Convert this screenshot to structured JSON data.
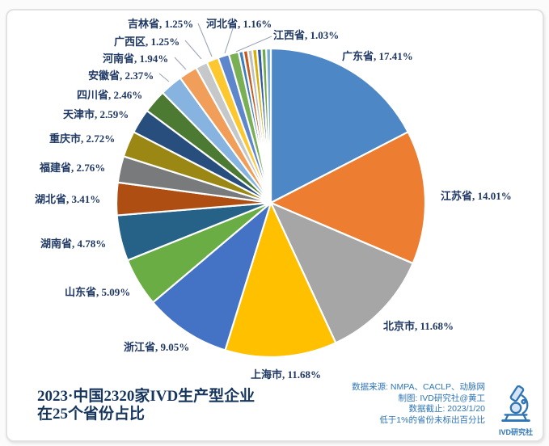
{
  "chart_data": {
    "type": "pie",
    "title": "2023·中国2320家IVD生产型企业在25个省份占比",
    "legend_position": "outside-labels",
    "note": "低于1%的省份未标出百分比",
    "slices": [
      {
        "name": "广东省",
        "pct": "17.41%",
        "value": 17.41,
        "color": "#4E87C5"
      },
      {
        "name": "江苏省",
        "pct": "14.01%",
        "value": 14.01,
        "color": "#ED7D31"
      },
      {
        "name": "北京市",
        "pct": "11.68%",
        "value": 11.68,
        "color": "#A6A6A6"
      },
      {
        "name": "上海市",
        "pct": "11.68%",
        "value": 11.68,
        "color": "#FFC000"
      },
      {
        "name": "浙江省",
        "pct": "9.05%",
        "value": 9.05,
        "color": "#4472C4"
      },
      {
        "name": "山东省",
        "pct": "5.09%",
        "value": 5.09,
        "color": "#6AAD45"
      },
      {
        "name": "湖南省",
        "pct": "4.78%",
        "value": 4.78,
        "color": "#266287"
      },
      {
        "name": "湖北省",
        "pct": "3.41%",
        "value": 3.41,
        "color": "#AE4E13"
      },
      {
        "name": "福建省",
        "pct": "2.76%",
        "value": 2.76,
        "color": "#797A7B"
      },
      {
        "name": "重庆市",
        "pct": "2.72%",
        "value": 2.72,
        "color": "#9B8714"
      },
      {
        "name": "天津市",
        "pct": "2.59%",
        "value": 2.59,
        "color": "#274E7D"
      },
      {
        "name": "四川省",
        "pct": "2.46%",
        "value": 2.46,
        "color": "#4C7A33"
      },
      {
        "name": "安徽省",
        "pct": "2.37%",
        "value": 2.37,
        "color": "#87B3E0"
      },
      {
        "name": "河南省",
        "pct": "1.94%",
        "value": 1.94,
        "color": "#F09E59"
      },
      {
        "name": "广西区",
        "pct": "1.25%",
        "value": 1.25,
        "color": "#C5C7C9"
      },
      {
        "name": "吉林省",
        "pct": "1.25%",
        "value": 1.25,
        "color": "#FDC72F"
      },
      {
        "name": "河北省",
        "pct": "1.16%",
        "value": 1.16,
        "color": "#5E86CC"
      },
      {
        "name": "江西省",
        "pct": "1.03%",
        "value": 1.03,
        "color": "#79AF55"
      },
      {
        "name": "",
        "pct": "",
        "value": 0.48,
        "color": "#3F7DBC"
      },
      {
        "name": "",
        "pct": "",
        "value": 0.48,
        "color": "#C65A1C"
      },
      {
        "name": "",
        "pct": "",
        "value": 0.48,
        "color": "#BFBFBF"
      },
      {
        "name": "",
        "pct": "",
        "value": 0.48,
        "color": "#D8AC00"
      },
      {
        "name": "",
        "pct": "",
        "value": 0.48,
        "color": "#30599F"
      },
      {
        "name": "",
        "pct": "",
        "value": 0.48,
        "color": "#6FA84E"
      },
      {
        "name": "",
        "pct": "",
        "value": 0.48,
        "color": "#74A9D9"
      }
    ]
  },
  "title": {
    "line1": "2023·中国2320家IVD生产型企业",
    "line2": "在25个省份占比"
  },
  "footer": {
    "lines": [
      "数据来源: NMPA、CACLP、动脉网",
      "制图: IVD研究社@黄工",
      "数据截止: 2023/1/20",
      "低于1%的省份未标出百分比"
    ]
  },
  "logo": {
    "caption": "IVD研究社"
  },
  "colors": {
    "label_text": "#1F3864",
    "title_text": "#17365D",
    "footer_text": "#2E75B6",
    "leader_line": "#9BA6B5"
  }
}
